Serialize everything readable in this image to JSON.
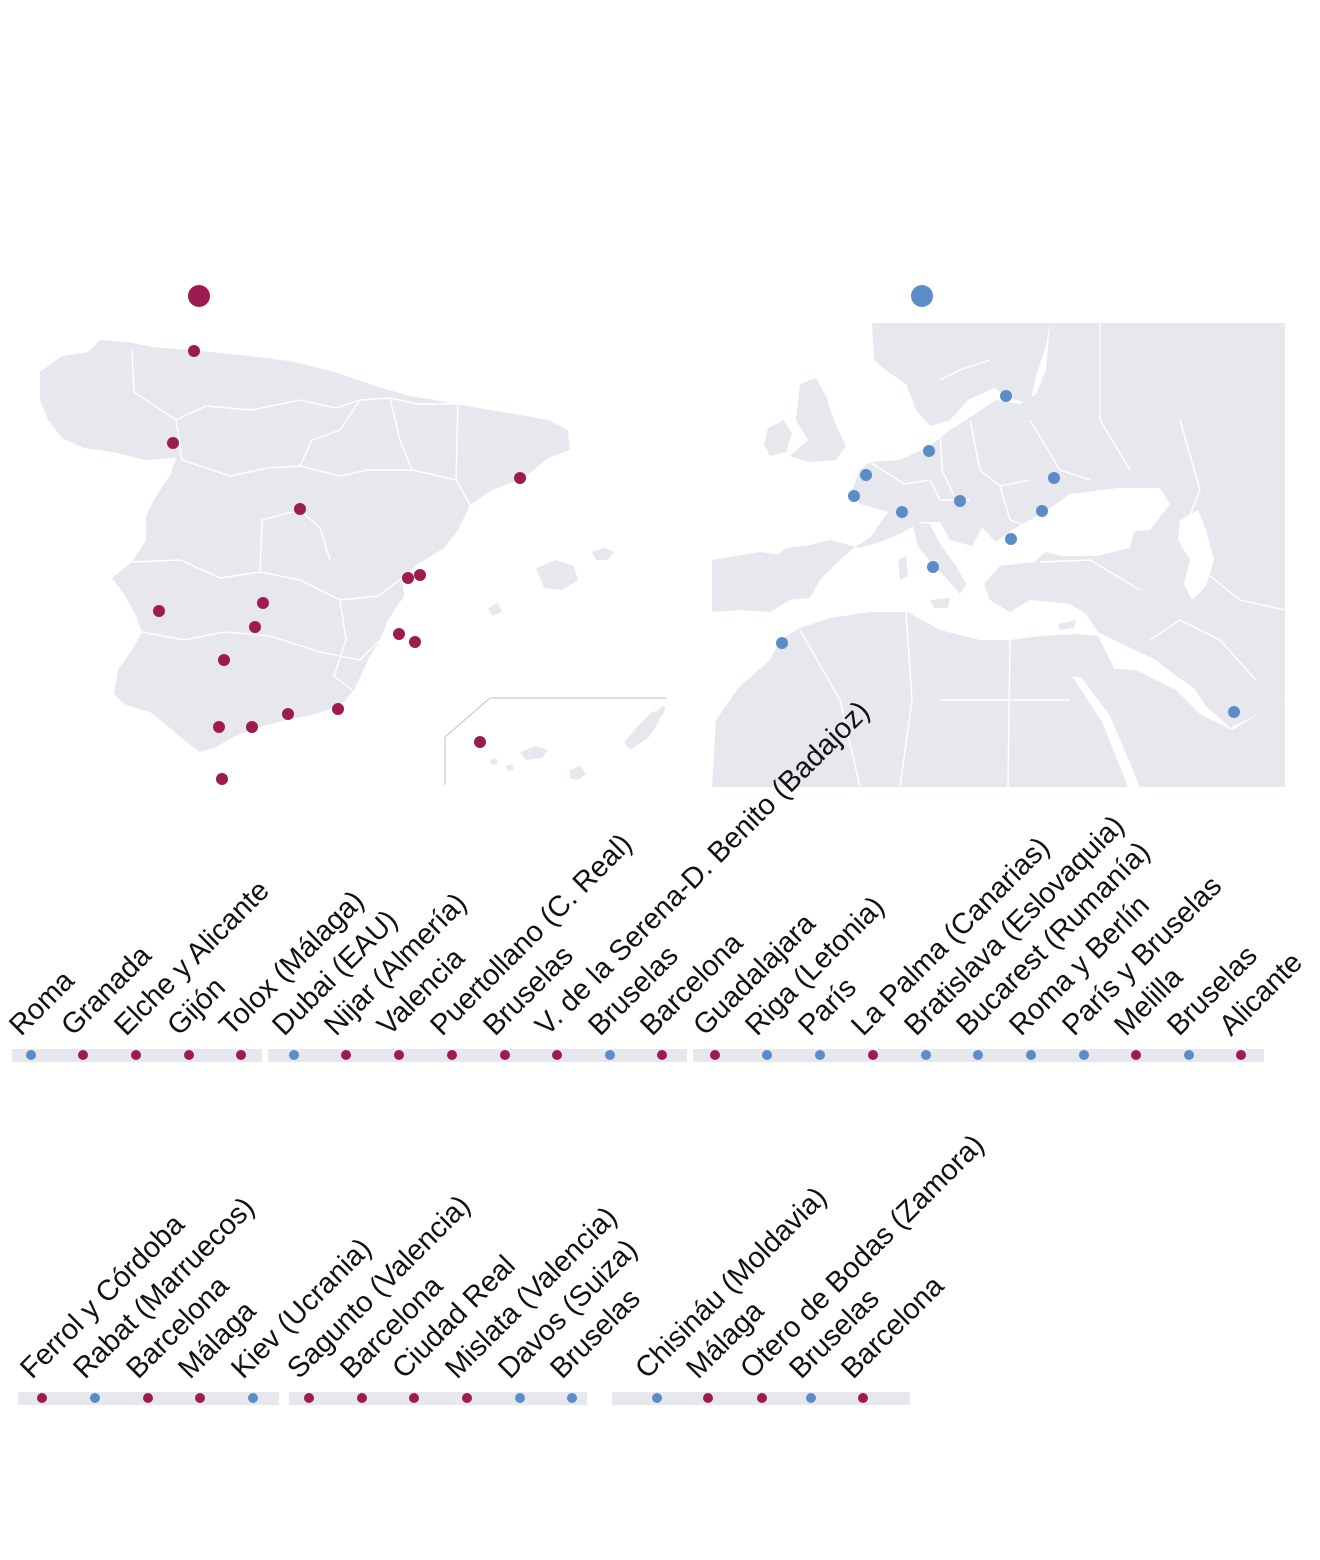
{
  "colors": {
    "spain": "#9e1b4f",
    "abroad": "#5b8cc8",
    "land": "#e6e8ee",
    "timeline_band": "#e6e8ee"
  },
  "legend": [
    {
      "name": "spain-legend-dot",
      "color_key": "spain"
    },
    {
      "name": "abroad-legend-dot",
      "color_key": "abroad"
    }
  ],
  "spain_map_points": [
    {
      "name": "gijon"
    },
    {
      "name": "ferrol"
    },
    {
      "name": "otero-de-bodas"
    },
    {
      "name": "guadalajara"
    },
    {
      "name": "barcelona"
    },
    {
      "name": "valencia"
    },
    {
      "name": "sagunto"
    },
    {
      "name": "v-de-la-serena"
    },
    {
      "name": "puertollano"
    },
    {
      "name": "ciudad-real"
    },
    {
      "name": "cordoba"
    },
    {
      "name": "mislata"
    },
    {
      "name": "alicante"
    },
    {
      "name": "malaga"
    },
    {
      "name": "tolox"
    },
    {
      "name": "granada"
    },
    {
      "name": "nijar"
    },
    {
      "name": "melilla"
    },
    {
      "name": "la-palma"
    }
  ],
  "europe_map_points": [
    {
      "name": "riga"
    },
    {
      "name": "berlin"
    },
    {
      "name": "bruselas"
    },
    {
      "name": "paris"
    },
    {
      "name": "kiev"
    },
    {
      "name": "davos"
    },
    {
      "name": "bratislava"
    },
    {
      "name": "chisinau"
    },
    {
      "name": "bucarest"
    },
    {
      "name": "roma"
    },
    {
      "name": "rabat"
    },
    {
      "name": "dubai"
    }
  ],
  "timeline_rows": [
    {
      "groups": [
        [
          {
            "label": "Roma",
            "kind": "abroad"
          },
          {
            "label": "Granada",
            "kind": "spain"
          },
          {
            "label": "Elche y Alicante",
            "kind": "spain"
          },
          {
            "label": "Gijón",
            "kind": "spain"
          },
          {
            "label": "Tolox (Málaga)",
            "kind": "spain"
          }
        ],
        [
          {
            "label": "Dubai (EAU)",
            "kind": "abroad"
          },
          {
            "label": "Nijar (Almería)",
            "kind": "spain"
          },
          {
            "label": "Valencia",
            "kind": "spain"
          },
          {
            "label": "Puertollano (C. Real)",
            "kind": "spain"
          },
          {
            "label": "Bruselas",
            "kind": "spain"
          },
          {
            "label": "V. de la Serena-D. Benito (Badajoz)",
            "kind": "spain"
          },
          {
            "label": "Bruselas",
            "kind": "abroad"
          },
          {
            "label": "Barcelona",
            "kind": "spain"
          }
        ],
        [
          {
            "label": "Guadalajara",
            "kind": "spain"
          },
          {
            "label": "Riga (Letonia)",
            "kind": "abroad"
          },
          {
            "label": "París",
            "kind": "abroad"
          },
          {
            "label": "La Palma (Canarias)",
            "kind": "spain"
          },
          {
            "label": "Bratislava (Eslovaquia)",
            "kind": "abroad"
          },
          {
            "label": "Bucarest (Rumanía)",
            "kind": "abroad"
          },
          {
            "label": "Roma y Berlín",
            "kind": "abroad"
          },
          {
            "label": "París y Bruselas",
            "kind": "abroad"
          },
          {
            "label": "Melilla",
            "kind": "spain"
          },
          {
            "label": "Bruselas",
            "kind": "abroad"
          },
          {
            "label": "Alicante",
            "kind": "spain"
          }
        ]
      ]
    },
    {
      "groups": [
        [
          {
            "label": "Ferrol y Córdoba",
            "kind": "spain"
          },
          {
            "label": "Rabat (Marruecos)",
            "kind": "abroad"
          },
          {
            "label": "Barcelona",
            "kind": "spain"
          },
          {
            "label": "Málaga",
            "kind": "spain"
          },
          {
            "label": "Kiev (Ucrania)",
            "kind": "abroad"
          }
        ],
        [
          {
            "label": "Sagunto (Valencia)",
            "kind": "spain"
          },
          {
            "label": "Barcelona",
            "kind": "spain"
          },
          {
            "label": "Ciudad Real",
            "kind": "spain"
          },
          {
            "label": "Mislata (Valencia)",
            "kind": "spain"
          },
          {
            "label": "Davos (Suiza)",
            "kind": "abroad"
          },
          {
            "label": "Bruselas",
            "kind": "abroad"
          }
        ],
        [
          {
            "label": "Chisináu (Moldavia)",
            "kind": "abroad"
          },
          {
            "label": "Málaga",
            "kind": "spain"
          },
          {
            "label": "Otero de Bodas (Zamora)",
            "kind": "spain"
          },
          {
            "label": "Bruselas",
            "kind": "abroad"
          },
          {
            "label": "Barcelona",
            "kind": "spain"
          }
        ]
      ]
    }
  ]
}
